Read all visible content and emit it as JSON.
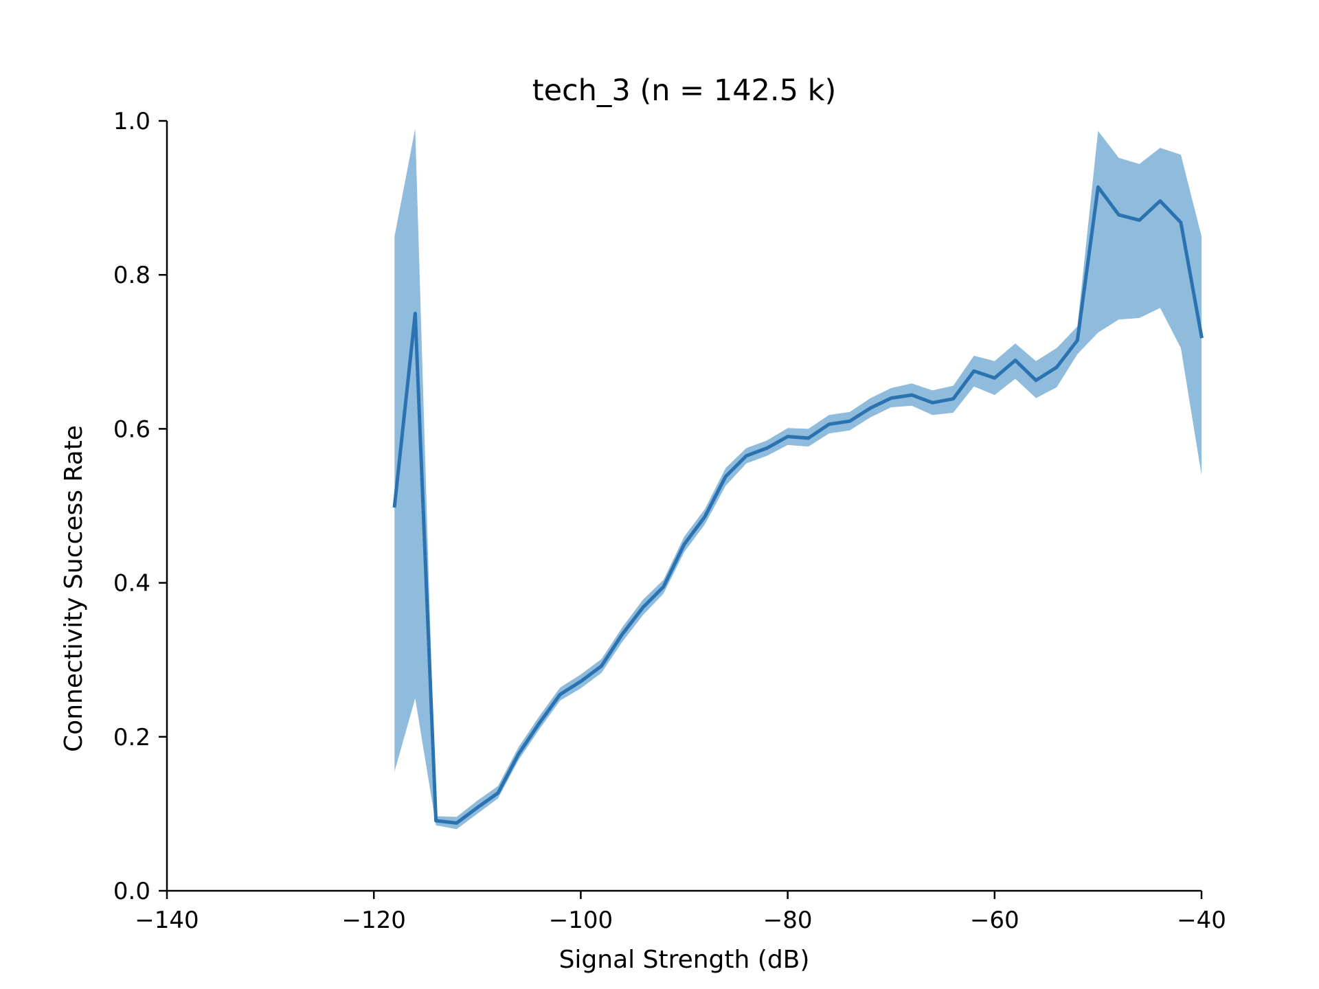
{
  "chart_data": {
    "type": "line",
    "title": "tech_3 (n = 142.5 k)",
    "xlabel": "Signal Strength (dB)",
    "ylabel": "Connectivity Success Rate",
    "xlim": [
      -140,
      -40
    ],
    "ylim": [
      0.0,
      1.0
    ],
    "xticks": [
      -140,
      -120,
      -100,
      -80,
      -60,
      -40
    ],
    "xtick_labels": [
      "−140",
      "−120",
      "−100",
      "−80",
      "−60",
      "−40"
    ],
    "yticks": [
      0.0,
      0.2,
      0.4,
      0.6,
      0.8,
      1.0
    ],
    "ytick_labels": [
      "0.0",
      "0.2",
      "0.4",
      "0.6",
      "0.8",
      "1.0"
    ],
    "grid": false,
    "line_color": "#2a72b0",
    "band_color": "#8fbbdc",
    "series": [
      {
        "x": [
          -118,
          -116,
          -114,
          -112,
          -110,
          -108,
          -106,
          -104,
          -102,
          -100,
          -98,
          -96,
          -94,
          -92,
          -90,
          -88,
          -86,
          -84,
          -82,
          -80,
          -78,
          -76,
          -74,
          -72,
          -70,
          -68,
          -66,
          -64,
          -62,
          -60,
          -58,
          -56,
          -54,
          -52,
          -50,
          -48,
          -46,
          -44,
          -42,
          -40
        ],
        "values": [
          0.5,
          0.75,
          0.091,
          0.088,
          0.108,
          0.127,
          0.178,
          0.218,
          0.255,
          0.272,
          0.292,
          0.333,
          0.368,
          0.395,
          0.45,
          0.486,
          0.538,
          0.565,
          0.575,
          0.59,
          0.588,
          0.606,
          0.61,
          0.627,
          0.64,
          0.644,
          0.634,
          0.639,
          0.675,
          0.666,
          0.689,
          0.663,
          0.68,
          0.715,
          0.914,
          0.878,
          0.871,
          0.896,
          0.868,
          0.72
        ],
        "lower": [
          0.155,
          0.25,
          0.085,
          0.08,
          0.1,
          0.12,
          0.17,
          0.21,
          0.247,
          0.263,
          0.283,
          0.323,
          0.358,
          0.386,
          0.44,
          0.476,
          0.526,
          0.555,
          0.565,
          0.579,
          0.577,
          0.594,
          0.598,
          0.615,
          0.628,
          0.63,
          0.618,
          0.621,
          0.655,
          0.644,
          0.665,
          0.64,
          0.654,
          0.697,
          0.725,
          0.742,
          0.744,
          0.757,
          0.705,
          0.54
        ],
        "upper": [
          0.85,
          0.99,
          0.097,
          0.096,
          0.117,
          0.136,
          0.187,
          0.227,
          0.264,
          0.281,
          0.301,
          0.342,
          0.378,
          0.404,
          0.46,
          0.496,
          0.549,
          0.575,
          0.585,
          0.601,
          0.6,
          0.618,
          0.622,
          0.64,
          0.653,
          0.659,
          0.65,
          0.656,
          0.695,
          0.688,
          0.711,
          0.688,
          0.705,
          0.733,
          0.987,
          0.952,
          0.944,
          0.965,
          0.956,
          0.85
        ]
      }
    ]
  }
}
